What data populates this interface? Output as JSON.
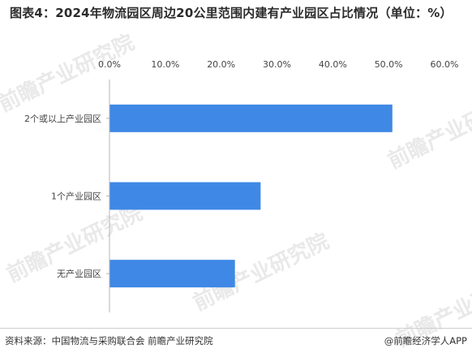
{
  "title": "图表4：2024年物流园区周边20公里范围内建有产业园区占比情况（单位：%）",
  "footer": {
    "source": "资料来源：中国物流与采购联合会  前瞻产业研究院",
    "brand": "@前瞻经济学人APP"
  },
  "watermark": "前瞻产业研究院",
  "chart_data": {
    "type": "bar",
    "orientation": "horizontal",
    "categories": [
      "2个或以上产业园区",
      "1个产业园区",
      "无产业园区"
    ],
    "values": [
      50.6,
      27.0,
      22.4
    ],
    "xlim": [
      0,
      60
    ],
    "xticks": [
      "0.0%",
      "10.0%",
      "20.0%",
      "30.0%",
      "40.0%",
      "50.0%",
      "60.0%"
    ],
    "xaxis_position": "top",
    "grid": false,
    "legend": "none",
    "bar_color": "#3f88e5"
  }
}
